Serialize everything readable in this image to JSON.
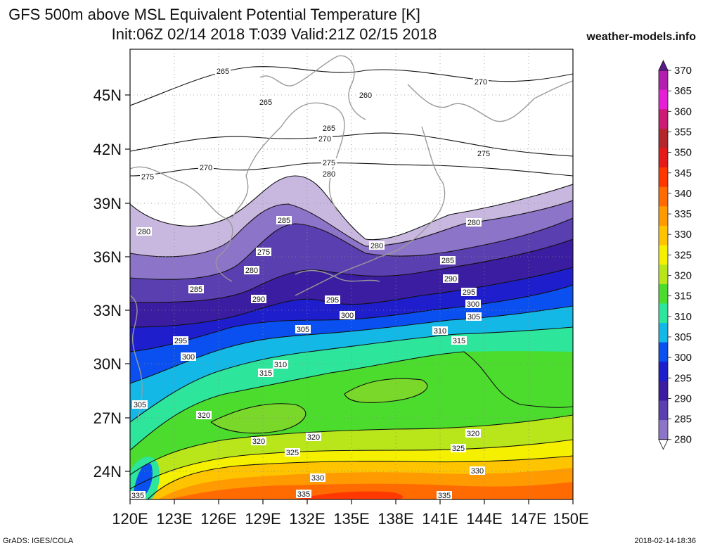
{
  "title_line1": "GFS 500m above MSL Equivalent Potential Temperature [K]",
  "title_line2": "Init:06Z 02/14 2018 T:039 Valid:21Z 02/15 2018",
  "site": "weather-models.info",
  "footer_left": "GrADS: IGES/COLA",
  "footer_right": "2018-02-14-18:36",
  "lat_labels": [
    "45N",
    "42N",
    "39N",
    "36N",
    "33N",
    "30N",
    "27N",
    "24N"
  ],
  "lon_labels": [
    "120E",
    "123E",
    "126E",
    "129E",
    "132E",
    "135E",
    "138E",
    "141E",
    "144E",
    "147E",
    "150E"
  ],
  "colorbar": {
    "levels": [
      370,
      365,
      360,
      355,
      350,
      345,
      340,
      335,
      330,
      325,
      320,
      315,
      310,
      305,
      300,
      295,
      290,
      285,
      280
    ],
    "colors": [
      "#5a1a8c",
      "#b21fb0",
      "#e61fd6",
      "#cc1a75",
      "#b3262b",
      "#e61919",
      "#ff3800",
      "#ff6b00",
      "#ff9a00",
      "#ffc400",
      "#f5f000",
      "#b8e61a",
      "#4cdc2d",
      "#2de69b",
      "#14b8e6",
      "#0a50f0",
      "#1e1ecc",
      "#3a1da0",
      "#5a3fb0",
      "#8c74c8",
      "#c8b8e0"
    ]
  },
  "contour_labels": [
    {
      "t": "265",
      "id": "c265a"
    },
    {
      "t": "265",
      "id": "c265b"
    },
    {
      "t": "265",
      "id": "c265c"
    },
    {
      "t": "260",
      "id": "c260"
    },
    {
      "t": "270",
      "id": "c270a"
    },
    {
      "t": "270",
      "id": "c270b"
    },
    {
      "t": "270",
      "id": "c270c"
    },
    {
      "t": "275",
      "id": "c275a"
    },
    {
      "t": "275",
      "id": "c275b"
    },
    {
      "t": "275",
      "id": "c275c"
    },
    {
      "t": "275",
      "id": "c275d"
    },
    {
      "t": "280",
      "id": "c280a"
    },
    {
      "t": "280",
      "id": "c280b"
    },
    {
      "t": "280",
      "id": "c280c"
    },
    {
      "t": "280",
      "id": "c280d"
    },
    {
      "t": "280",
      "id": "c280e"
    },
    {
      "t": "285",
      "id": "c285a"
    },
    {
      "t": "285",
      "id": "c285b"
    },
    {
      "t": "285",
      "id": "c285c"
    },
    {
      "t": "290",
      "id": "c290a"
    },
    {
      "t": "290",
      "id": "c290b"
    },
    {
      "t": "295",
      "id": "c295a"
    },
    {
      "t": "295",
      "id": "c295b"
    },
    {
      "t": "295",
      "id": "c295c"
    },
    {
      "t": "300",
      "id": "c300a"
    },
    {
      "t": "300",
      "id": "c300b"
    },
    {
      "t": "300",
      "id": "c300c"
    },
    {
      "t": "305",
      "id": "c305a"
    },
    {
      "t": "305",
      "id": "c305b"
    },
    {
      "t": "305",
      "id": "c305c"
    },
    {
      "t": "310",
      "id": "c310a"
    },
    {
      "t": "310",
      "id": "c310b"
    },
    {
      "t": "315",
      "id": "c315a"
    },
    {
      "t": "315",
      "id": "c315b"
    },
    {
      "t": "320",
      "id": "c320a"
    },
    {
      "t": "320",
      "id": "c320b"
    },
    {
      "t": "320",
      "id": "c320c"
    },
    {
      "t": "320",
      "id": "c320d"
    },
    {
      "t": "325",
      "id": "c325a"
    },
    {
      "t": "325",
      "id": "c325b"
    },
    {
      "t": "330",
      "id": "c330a"
    },
    {
      "t": "330",
      "id": "c330b"
    },
    {
      "t": "335",
      "id": "c335a"
    },
    {
      "t": "335",
      "id": "c335b"
    },
    {
      "t": "335",
      "id": "c335c"
    }
  ]
}
